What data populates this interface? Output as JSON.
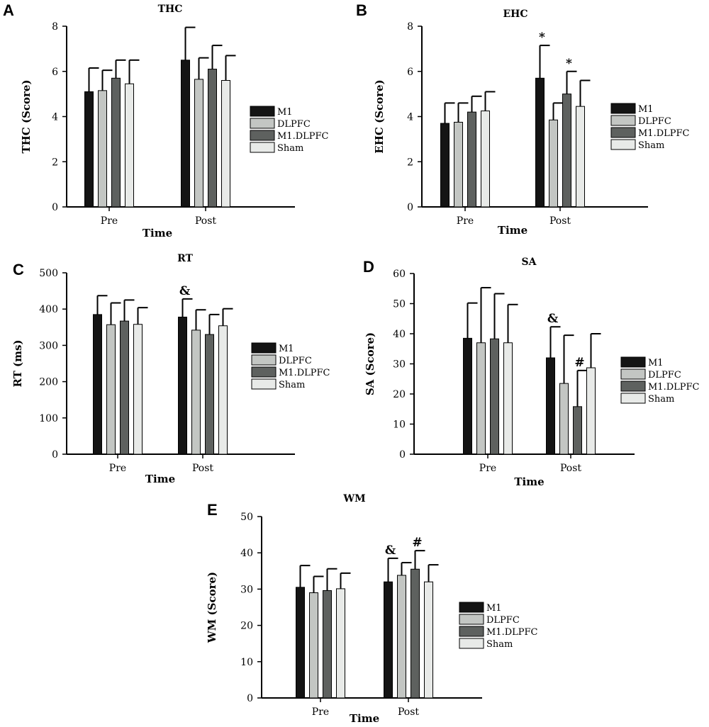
{
  "colors": {
    "M1": "#141414",
    "DLPFC": "#c3c6c3",
    "M1.DLPFC": "#5e615f",
    "Sham": "#e8eae8"
  },
  "chart_data": [
    {
      "panel": "A",
      "type": "bar",
      "title": "THC",
      "xlabel": "Time",
      "ylabel": "THC (Score)",
      "categories": [
        "Pre",
        "Post"
      ],
      "ylim": [
        0,
        8
      ],
      "yticks": [
        0,
        2,
        4,
        6,
        8
      ],
      "series": [
        {
          "name": "M1",
          "values": [
            5.1,
            6.5
          ],
          "error": [
            1.05,
            1.45
          ]
        },
        {
          "name": "DLPFC",
          "values": [
            5.15,
            5.65
          ],
          "error": [
            0.9,
            0.95
          ]
        },
        {
          "name": "M1.DLPFC",
          "values": [
            5.7,
            6.1
          ],
          "error": [
            0.8,
            1.05
          ]
        },
        {
          "name": "Sham",
          "values": [
            5.45,
            5.6
          ],
          "error": [
            1.05,
            1.1
          ]
        }
      ],
      "annotations": [],
      "legend": "right",
      "grid": false
    },
    {
      "panel": "B",
      "type": "bar",
      "title": "EHC",
      "xlabel": "Time",
      "ylabel": "EHC (Score)",
      "categories": [
        "Pre",
        "Post"
      ],
      "ylim": [
        0,
        8
      ],
      "yticks": [
        0,
        2,
        4,
        6,
        8
      ],
      "series": [
        {
          "name": "M1",
          "values": [
            3.7,
            5.7
          ],
          "error": [
            0.9,
            1.45
          ]
        },
        {
          "name": "DLPFC",
          "values": [
            3.75,
            3.85
          ],
          "error": [
            0.85,
            0.75
          ]
        },
        {
          "name": "M1.DLPFC",
          "values": [
            4.2,
            5.0
          ],
          "error": [
            0.7,
            1.0
          ]
        },
        {
          "name": "Sham",
          "values": [
            4.25,
            4.45
          ],
          "error": [
            0.85,
            1.15
          ]
        }
      ],
      "annotations": [
        {
          "text": "*",
          "category": 1,
          "series": 0
        },
        {
          "text": "*",
          "category": 1,
          "series": 2
        }
      ],
      "legend": "right",
      "grid": false
    },
    {
      "panel": "C",
      "type": "bar",
      "title": "RT",
      "xlabel": "Time",
      "ylabel": "RT (ms)",
      "categories": [
        "Pre",
        "Post"
      ],
      "ylim": [
        0,
        500
      ],
      "yticks": [
        0,
        100,
        200,
        300,
        400,
        500
      ],
      "series": [
        {
          "name": "M1",
          "values": [
            385,
            378
          ],
          "error": [
            52,
            50
          ]
        },
        {
          "name": "DLPFC",
          "values": [
            357,
            342
          ],
          "error": [
            60,
            56
          ]
        },
        {
          "name": "M1.DLPFC",
          "values": [
            367,
            330
          ],
          "error": [
            58,
            55
          ]
        },
        {
          "name": "Sham",
          "values": [
            358,
            354
          ],
          "error": [
            46,
            47
          ]
        }
      ],
      "annotations": [
        {
          "text": "&",
          "category": 1,
          "series": 0
        }
      ],
      "legend": "right",
      "grid": false
    },
    {
      "panel": "D",
      "type": "bar",
      "title": "SA",
      "xlabel": "Time",
      "ylabel": "SA (Score)",
      "categories": [
        "Pre",
        "Post"
      ],
      "ylim": [
        0,
        60
      ],
      "yticks": [
        0,
        10,
        20,
        30,
        40,
        50,
        60
      ],
      "series": [
        {
          "name": "M1",
          "values": [
            38.5,
            32
          ],
          "error": [
            11.7,
            10.3
          ]
        },
        {
          "name": "DLPFC",
          "values": [
            37,
            23.5
          ],
          "error": [
            18.3,
            16
          ]
        },
        {
          "name": "M1.DLPFC",
          "values": [
            38.3,
            15.8
          ],
          "error": [
            15,
            12
          ]
        },
        {
          "name": "Sham",
          "values": [
            37,
            28.7
          ],
          "error": [
            12.7,
            11.3
          ]
        }
      ],
      "annotations": [
        {
          "text": "&",
          "category": 1,
          "series": 0
        },
        {
          "text": "#",
          "category": 1,
          "series": 2
        }
      ],
      "legend": "right",
      "grid": false
    },
    {
      "panel": "E",
      "type": "bar",
      "title": "WM",
      "xlabel": "Time",
      "ylabel": "WM (Score)",
      "categories": [
        "Pre",
        "Post"
      ],
      "ylim": [
        0,
        50
      ],
      "yticks": [
        0,
        10,
        20,
        30,
        40,
        50
      ],
      "series": [
        {
          "name": "M1",
          "values": [
            30.5,
            32
          ],
          "error": [
            6,
            6.5
          ]
        },
        {
          "name": "DLPFC",
          "values": [
            29,
            33.8
          ],
          "error": [
            4.5,
            3.5
          ]
        },
        {
          "name": "M1.DLPFC",
          "values": [
            29.6,
            35.5
          ],
          "error": [
            6,
            5.1
          ]
        },
        {
          "name": "Sham",
          "values": [
            30.1,
            32
          ],
          "error": [
            4.3,
            4.7
          ]
        }
      ],
      "annotations": [
        {
          "text": "&",
          "category": 1,
          "series": 0
        },
        {
          "text": "#",
          "category": 1,
          "series": 2
        }
      ],
      "legend": "right",
      "grid": false
    }
  ]
}
